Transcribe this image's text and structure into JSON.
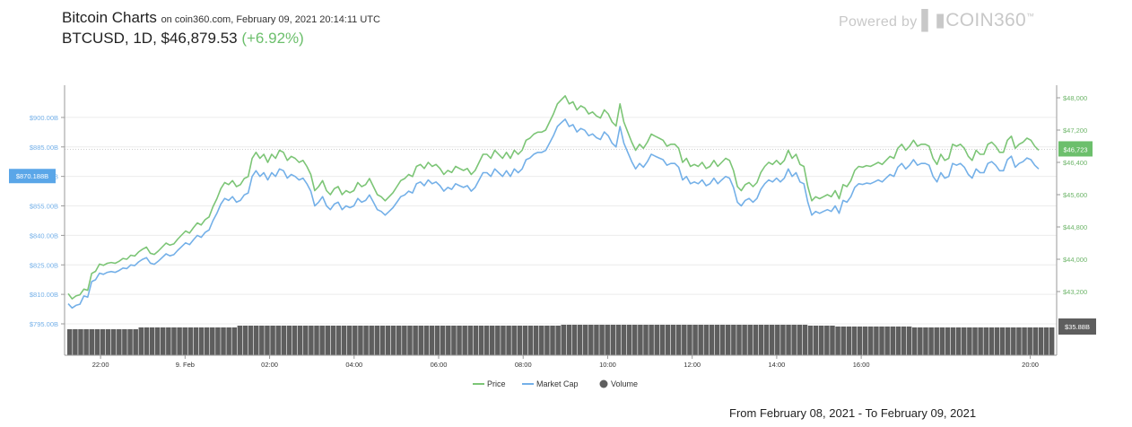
{
  "header": {
    "title": "Bitcoin Charts",
    "subtitle": "on coin360.com, February 09, 2021 20:14:11 UTC",
    "pair": "BTCUSD, 1D, $46,879.53",
    "change": "(+6.92%)"
  },
  "branding": {
    "powered_by": "Powered by",
    "logo_text": "COIN360",
    "logo_mark": "™"
  },
  "footer": {
    "range": "From February 08, 2021 - To February 09, 2021"
  },
  "colors": {
    "price": "#7cc576",
    "market_cap": "#74b0e8",
    "volume": "#5e5e5e",
    "change": "#6cbf6c"
  },
  "chart_data": {
    "type": "line",
    "x_tick_labels": [
      "22:00",
      "9. Feb",
      "02:00",
      "04:00",
      "06:00",
      "08:00",
      "10:00",
      "12:00",
      "14:00",
      "16:00",
      "20:00"
    ],
    "y_left": {
      "ticks": [
        "$795.00B",
        "$810.00B",
        "$825.00B",
        "$840.00B",
        "$855.00B",
        "$870.00B",
        "$885.00B",
        "$900.00B"
      ],
      "range": [
        795,
        910
      ],
      "current_label": "$870.188B"
    },
    "y_right": {
      "ticks": [
        "$43,200",
        "$44,000",
        "$44,800",
        "$45,600",
        "$46,400",
        "$47,200",
        "$48,000"
      ],
      "range": [
        42600,
        48400
      ],
      "current_label": "$46,723",
      "volume_label": "$35.88B"
    },
    "legend": [
      "Price",
      "Market Cap",
      "Volume"
    ],
    "grid": true,
    "series": [
      {
        "name": "Price",
        "values": [
          43150,
          43020,
          43090,
          43120,
          43260,
          43230,
          43650,
          43700,
          43880,
          43850,
          43900,
          43920,
          43900,
          43950,
          44020,
          44000,
          44100,
          44080,
          44180,
          44250,
          44300,
          44150,
          44120,
          44200,
          44300,
          44400,
          44350,
          44380,
          44500,
          44600,
          44700,
          44650,
          44780,
          44900,
          44850,
          44980,
          45050,
          45300,
          45500,
          45750,
          45900,
          45850,
          45950,
          45800,
          45850,
          46000,
          46050,
          46500,
          46650,
          46500,
          46600,
          46400,
          46600,
          46500,
          46700,
          46650,
          46450,
          46550,
          46500,
          46400,
          46450,
          46300,
          46100,
          45700,
          45800,
          45950,
          45700,
          45600,
          45750,
          45800,
          45600,
          45700,
          45650,
          45700,
          45900,
          45800,
          45850,
          46000,
          45800,
          45600,
          45550,
          45450,
          45550,
          45650,
          45800,
          45950,
          46000,
          46100,
          46050,
          46300,
          46350,
          46250,
          46400,
          46300,
          46350,
          46250,
          46100,
          46200,
          46150,
          46300,
          46250,
          46200,
          46250,
          46100,
          46200,
          46400,
          46600,
          46600,
          46500,
          46700,
          46600,
          46500,
          46650,
          46500,
          46700,
          46600,
          46700,
          46950,
          47000,
          47100,
          47150,
          47150,
          47200,
          47400,
          47600,
          47850,
          47950,
          48050,
          47850,
          47900,
          47700,
          47800,
          47750,
          47600,
          47650,
          47550,
          47500,
          47700,
          47600,
          47400,
          47300,
          47850,
          47400,
          47150,
          46900,
          46700,
          46850,
          46750,
          46900,
          47100,
          47050,
          47000,
          46950,
          46800,
          46850,
          46850,
          46750,
          46400,
          46500,
          46300,
          46350,
          46300,
          46400,
          46250,
          46300,
          46450,
          46300,
          46400,
          46500,
          46450,
          46200,
          45800,
          45700,
          45850,
          45900,
          45800,
          45900,
          46150,
          46300,
          46400,
          46350,
          46450,
          46350,
          46450,
          46700,
          46500,
          46600,
          46350,
          46300,
          45800,
          45450,
          45550,
          45500,
          45550,
          45600,
          45550,
          45700,
          45500,
          45850,
          45800,
          45950,
          46200,
          46300,
          46280,
          46320,
          46300,
          46350,
          46400,
          46350,
          46450,
          46550,
          46500,
          46750,
          46850,
          46700,
          46800,
          46950,
          46800,
          46850,
          46850,
          46800,
          46500,
          46350,
          46600,
          46450,
          46500,
          46850,
          46800,
          46850,
          46750,
          46550,
          46450,
          46700,
          46600,
          46600,
          46850,
          46900,
          46800,
          46650,
          46650,
          46950,
          47050,
          46750,
          46850,
          46900,
          47000,
          46950,
          46800,
          46700
        ]
      },
      {
        "name": "Market Cap",
        "values": [
          805.2,
          803.1,
          804.4,
          805.0,
          809.2,
          808.6,
          816.5,
          817.4,
          820.8,
          820.2,
          821.2,
          821.6,
          821.2,
          822.1,
          823.4,
          823.1,
          825.0,
          824.6,
          826.5,
          827.8,
          828.7,
          825.9,
          825.3,
          826.8,
          828.7,
          830.6,
          829.6,
          830.2,
          832.4,
          834.3,
          836.2,
          835.3,
          837.7,
          840.0,
          839.0,
          841.5,
          842.8,
          847.5,
          851.2,
          855.9,
          858.8,
          857.8,
          859.7,
          856.9,
          857.8,
          860.6,
          861.6,
          870.0,
          872.9,
          870.0,
          871.9,
          868.2,
          871.9,
          870.0,
          873.8,
          872.9,
          869.1,
          871.0,
          870.0,
          868.2,
          869.1,
          866.3,
          862.5,
          855.0,
          856.9,
          859.7,
          855.0,
          853.1,
          855.9,
          856.9,
          853.1,
          855.0,
          854.1,
          855.0,
          858.8,
          856.9,
          857.8,
          860.6,
          856.9,
          853.1,
          852.2,
          850.3,
          852.2,
          854.1,
          856.9,
          859.7,
          860.6,
          862.5,
          861.6,
          866.3,
          867.2,
          865.3,
          868.2,
          866.3,
          867.2,
          865.3,
          862.5,
          864.4,
          863.4,
          866.3,
          865.3,
          864.4,
          865.3,
          862.5,
          864.4,
          868.2,
          871.9,
          871.9,
          870.0,
          873.8,
          871.9,
          870.0,
          872.9,
          870.0,
          873.8,
          871.9,
          873.8,
          878.5,
          879.4,
          881.3,
          882.2,
          882.2,
          883.2,
          886.9,
          890.7,
          895.4,
          897.3,
          899.1,
          895.4,
          896.3,
          892.6,
          894.4,
          893.5,
          890.7,
          891.6,
          889.7,
          888.8,
          892.6,
          890.7,
          886.9,
          885.0,
          895.4,
          886.9,
          882.2,
          877.5,
          873.8,
          876.6,
          874.7,
          877.5,
          881.3,
          880.3,
          879.4,
          878.5,
          875.7,
          876.6,
          876.6,
          874.7,
          868.2,
          870.0,
          866.3,
          867.2,
          866.3,
          868.2,
          865.3,
          866.3,
          869.1,
          866.3,
          868.2,
          870.0,
          869.1,
          864.4,
          856.9,
          855.0,
          857.8,
          858.8,
          856.9,
          858.8,
          863.4,
          866.3,
          868.2,
          867.2,
          869.1,
          867.2,
          869.1,
          873.8,
          870.0,
          871.9,
          867.2,
          866.3,
          856.9,
          850.3,
          852.2,
          851.2,
          852.2,
          853.1,
          852.2,
          855.0,
          851.2,
          857.8,
          856.9,
          859.7,
          864.4,
          866.3,
          865.9,
          866.6,
          866.3,
          867.2,
          868.2,
          867.2,
          869.1,
          871.0,
          870.0,
          874.7,
          876.6,
          873.8,
          875.7,
          878.5,
          875.7,
          876.6,
          876.6,
          875.7,
          870.0,
          867.2,
          871.9,
          869.1,
          870.0,
          876.6,
          875.7,
          876.6,
          874.7,
          871.0,
          869.1,
          873.8,
          871.9,
          871.9,
          876.6,
          877.5,
          875.7,
          872.9,
          872.9,
          878.5,
          880.3,
          874.7,
          876.6,
          877.5,
          879.4,
          878.5,
          875.7,
          873.8
        ]
      }
    ]
  }
}
